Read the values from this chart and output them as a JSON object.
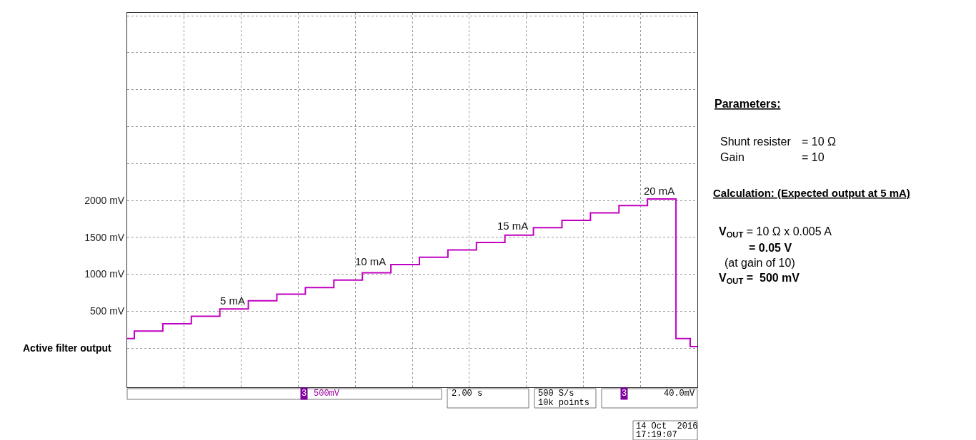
{
  "chart_data": {
    "type": "step",
    "color": "#c000c0",
    "categories": [
      null,
      null,
      null,
      null,
      null,
      null,
      null,
      null,
      null,
      null,
      null,
      null,
      null,
      null,
      null,
      null,
      null,
      null,
      null,
      null,
      null,
      null,
      null,
      null,
      null,
      null,
      null,
      null,
      null,
      null,
      null,
      null,
      null,
      null,
      null,
      null,
      null,
      null,
      null,
      null,
      null,
      null,
      null,
      null,
      null,
      null,
      null,
      null,
      null,
      null,
      null,
      null,
      null,
      null,
      null,
      null,
      null,
      null,
      null,
      null,
      null,
      null,
      null,
      null,
      null,
      null,
      null,
      null,
      null,
      null,
      null,
      null,
      null,
      null,
      null,
      null,
      null,
      null,
      null,
      null,
      null
    ],
    "values": [
      130,
      230,
      230,
      230,
      230,
      330,
      330,
      330,
      330,
      430,
      430,
      430,
      430,
      530,
      530,
      530,
      530,
      640,
      640,
      640,
      640,
      730,
      730,
      730,
      730,
      820,
      820,
      820,
      820,
      920,
      920,
      920,
      920,
      1020,
      1020,
      1020,
      1020,
      1130,
      1130,
      1130,
      1130,
      1230,
      1230,
      1230,
      1230,
      1330,
      1330,
      1330,
      1330,
      1430,
      1430,
      1430,
      1430,
      1530,
      1530,
      1530,
      1530,
      1630,
      1630,
      1630,
      1630,
      1730,
      1730,
      1730,
      1730,
      1830,
      1830,
      1830,
      1830,
      1930,
      1930,
      1930,
      1930,
      2020,
      2020,
      2020,
      2020,
      130,
      130,
      20,
      20
    ],
    "ylim": [
      -530,
      4540
    ],
    "yticks": [
      {
        "value": 0,
        "label": null
      },
      {
        "value": 500,
        "label": "500 mV"
      },
      {
        "value": 1000,
        "label": "1000 mV"
      },
      {
        "value": 1500,
        "label": "1500 mV"
      },
      {
        "value": 2000,
        "label": "2000 mV"
      },
      {
        "value": 2500,
        "label": null
      },
      {
        "value": 3000,
        "label": null
      },
      {
        "value": 3500,
        "label": null
      },
      {
        "value": 4000,
        "label": null
      },
      {
        "value": 4500,
        "label": null
      }
    ],
    "tick_labels": "y",
    "grid": true,
    "annotations": [
      "5 mA",
      "10 mA",
      "15 mA",
      "20 mA",
      "Active filter output",
      "3",
      "500mV",
      "2.00 s",
      "500 S/s",
      "10k points",
      "3",
      "40.0mV",
      "14 Oct  2016",
      "17:19:07",
      "Parameters:",
      "Shunt resister",
      "= 10 Ω",
      "Gain",
      "= 10",
      "Calculation: (Expected output at 5 mA)",
      "V$_{OUT}$ = 10 Ω x 0.005 A",
      "= 0.05 V",
      "(at gain of 10)",
      "V$_{OUT}$ =  500 mV"
    ]
  }
}
